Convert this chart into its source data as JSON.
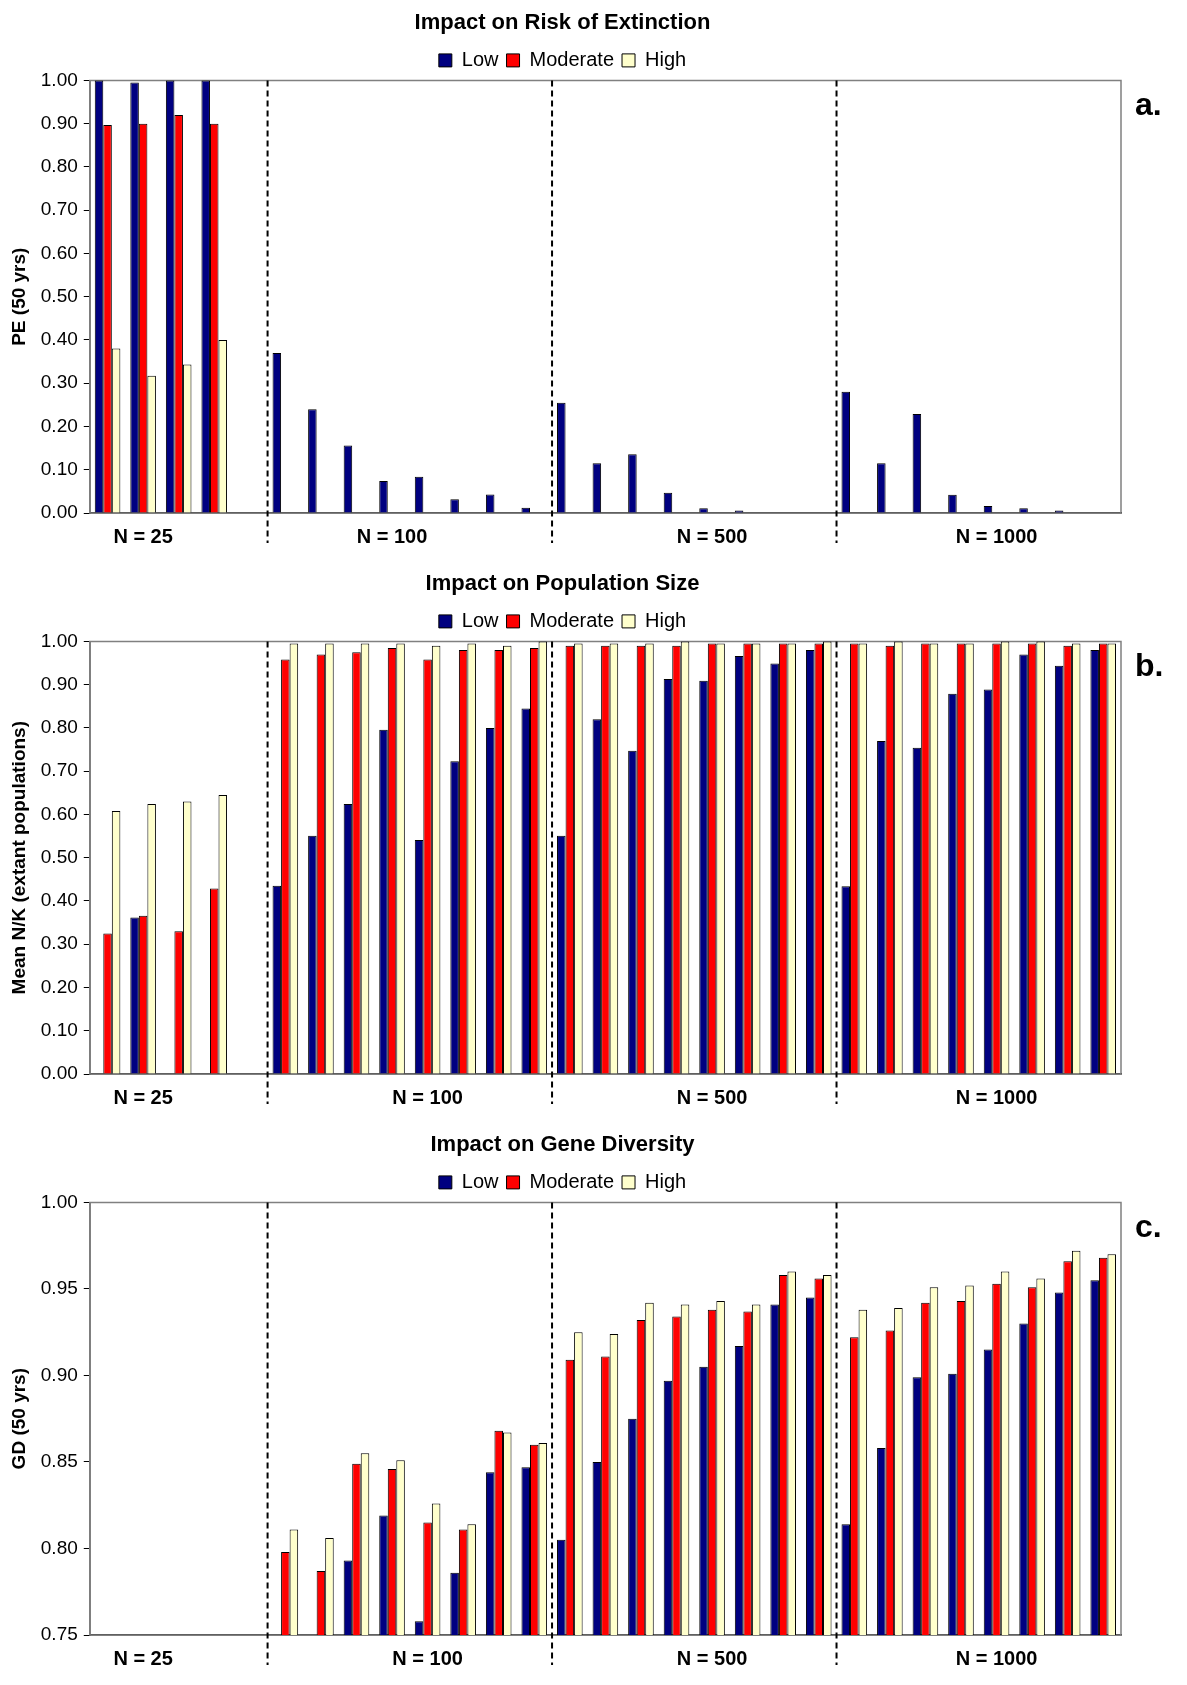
{
  "chart_data": [
    {
      "type": "bar",
      "title": "Impact on Risk of Extinction",
      "ylabel": "PE (50 yrs)",
      "legend": "top",
      "grid": false,
      "annotations": [
        "a."
      ],
      "categories": [
        null,
        "N = 25",
        null,
        null,
        null,
        null,
        null,
        null,
        "N = 100",
        null,
        null,
        null,
        null,
        null,
        null,
        null,
        null,
        "N = 500",
        null,
        null,
        null,
        null,
        null,
        null,
        null,
        "N = 1000",
        null,
        null,
        null
      ],
      "series": [
        {
          "name": "Low",
          "color": "#000080",
          "values": [
            1.0,
            0.995,
            1.0,
            1.0,
            null,
            0.37,
            0.24,
            0.156,
            0.074,
            0.084,
            0.032,
            0.043,
            0.012,
            0.255,
            0.115,
            0.136,
            0.047,
            0.011,
            0.006,
            0,
            0,
            0.28,
            0.115,
            0.229,
            0.042,
            0.016,
            0.011,
            0.006,
            0
          ]
        },
        {
          "name": "Moderate",
          "color": "#ff0000",
          "values": [
            0.897,
            0.9,
            0.92,
            0.9,
            null,
            0,
            0,
            0,
            0,
            0,
            0,
            0,
            0,
            0,
            0,
            0,
            0,
            0,
            0,
            0,
            0,
            0,
            0,
            0,
            0,
            0,
            0,
            0,
            0
          ]
        },
        {
          "name": "High",
          "color": "#ffffcc",
          "values": [
            0.38,
            0.317,
            0.343,
            0.4,
            null,
            0,
            0,
            0,
            0,
            0,
            0,
            0,
            0,
            0,
            0,
            0,
            0,
            0,
            0,
            0,
            0,
            0,
            0,
            0,
            0,
            0,
            0,
            0,
            0
          ]
        }
      ],
      "ylim": [
        0,
        1
      ],
      "yticks": [
        {
          "value": 0,
          "label": "0.00"
        },
        {
          "value": 0.1,
          "label": "0.10"
        },
        {
          "value": 0.2,
          "label": "0.20"
        },
        {
          "value": 0.3,
          "label": "0.30"
        },
        {
          "value": 0.4,
          "label": "0.40"
        },
        {
          "value": 0.5,
          "label": "0.50"
        },
        {
          "value": 0.6,
          "label": "0.60"
        },
        {
          "value": 0.7,
          "label": "0.70"
        },
        {
          "value": 0.8,
          "label": "0.80"
        },
        {
          "value": 0.9,
          "label": "0.90"
        },
        {
          "value": 1,
          "label": "1.00"
        }
      ]
    },
    {
      "type": "bar",
      "title": "Impact on Population Size",
      "ylabel": "Mean N/K (extant populations)",
      "legend": "top",
      "grid": false,
      "annotations": [
        "b."
      ],
      "categories": [
        null,
        "N = 25",
        null,
        null,
        null,
        null,
        null,
        null,
        null,
        "N = 100",
        null,
        null,
        null,
        null,
        null,
        null,
        null,
        "N = 500",
        null,
        null,
        null,
        null,
        null,
        null,
        null,
        "N = 1000",
        null,
        null,
        null
      ],
      "series": [
        {
          "name": "Low",
          "color": "#000080",
          "values": [
            null,
            0.362,
            null,
            null,
            null,
            0.435,
            0.551,
            0.624,
            0.796,
            0.541,
            0.723,
            0.8,
            0.845,
            0.551,
            0.82,
            0.747,
            0.913,
            0.909,
            0.966,
            0.949,
            0.98,
            0.434,
            0.77,
            0.754,
            0.879,
            0.889,
            0.97,
            0.944,
            0.98
          ]
        },
        {
          "name": "Moderate",
          "color": "#ff0000",
          "values": [
            0.325,
            0.366,
            0.33,
            0.429,
            null,
            0.958,
            0.97,
            0.975,
            0.985,
            0.958,
            0.98,
            0.98,
            0.985,
            0.99,
            0.99,
            0.99,
            0.99,
            0.995,
            0.995,
            0.995,
            0.995,
            0.995,
            0.99,
            0.995,
            0.995,
            0.995,
            0.995,
            0.99,
            0.995
          ]
        },
        {
          "name": "High",
          "color": "#ffffcc",
          "values": [
            0.608,
            0.624,
            0.63,
            0.645,
            null,
            0.995,
            0.995,
            0.995,
            0.995,
            0.99,
            0.995,
            0.99,
            1.0,
            0.995,
            0.995,
            0.995,
            1.0,
            0.995,
            0.995,
            0.995,
            1.0,
            0.995,
            1.0,
            0.995,
            0.995,
            1.0,
            1.0,
            0.995,
            0.995
          ]
        }
      ],
      "ylim": [
        0,
        1
      ],
      "yticks": [
        {
          "value": 0,
          "label": "0.00"
        },
        {
          "value": 0.1,
          "label": "0.10"
        },
        {
          "value": 0.2,
          "label": "0.20"
        },
        {
          "value": 0.3,
          "label": "0.30"
        },
        {
          "value": 0.4,
          "label": "0.40"
        },
        {
          "value": 0.5,
          "label": "0.50"
        },
        {
          "value": 0.6,
          "label": "0.60"
        },
        {
          "value": 0.7,
          "label": "0.70"
        },
        {
          "value": 0.8,
          "label": "0.80"
        },
        {
          "value": 0.9,
          "label": "0.90"
        },
        {
          "value": 1,
          "label": "1.00"
        }
      ]
    },
    {
      "type": "bar",
      "title": "Impact on Gene Diversity",
      "ylabel": "GD (50 yrs)",
      "legend": "top",
      "grid": false,
      "annotations": [
        "c."
      ],
      "categories": [
        null,
        "N = 25",
        null,
        null,
        null,
        null,
        null,
        null,
        null,
        "N = 100",
        null,
        null,
        null,
        null,
        null,
        null,
        null,
        "N = 500",
        null,
        null,
        null,
        null,
        null,
        null,
        null,
        "N = 1000",
        null,
        null,
        null
      ],
      "series": [
        {
          "name": "Low",
          "color": "#000080",
          "values": [
            null,
            null,
            null,
            null,
            null,
            null,
            null,
            0.793,
            0.819,
            0.758,
            0.786,
            0.844,
            0.847,
            0.805,
            0.85,
            0.875,
            0.897,
            0.905,
            0.917,
            0.941,
            0.945,
            0.814,
            0.858,
            0.899,
            0.901,
            0.915,
            0.93,
            0.948,
            0.955
          ]
        },
        {
          "name": "Moderate",
          "color": "#ff0000",
          "values": [
            null,
            null,
            null,
            null,
            null,
            0.798,
            0.787,
            0.849,
            0.846,
            0.815,
            0.811,
            0.868,
            0.86,
            0.909,
            0.911,
            0.932,
            0.934,
            0.938,
            0.937,
            0.958,
            0.956,
            0.922,
            0.926,
            0.942,
            0.943,
            0.953,
            0.951,
            0.966,
            0.968
          ]
        },
        {
          "name": "High",
          "color": "#ffffcc",
          "values": [
            null,
            null,
            null,
            null,
            null,
            0.811,
            0.806,
            0.855,
            0.851,
            0.826,
            0.814,
            0.867,
            0.861,
            0.925,
            0.924,
            0.942,
            0.941,
            0.943,
            0.941,
            0.96,
            0.958,
            0.938,
            0.939,
            0.951,
            0.952,
            0.96,
            0.956,
            0.972,
            0.97
          ]
        }
      ],
      "ylim": [
        0.75,
        1
      ],
      "yticks": [
        {
          "value": 0.75,
          "label": "0.75"
        },
        {
          "value": 0.8,
          "label": "0.80"
        },
        {
          "value": 0.85,
          "label": "0.85"
        },
        {
          "value": 0.9,
          "label": "0.90"
        },
        {
          "value": 0.95,
          "label": "0.95"
        },
        {
          "value": 1,
          "label": "1.00"
        }
      ]
    }
  ]
}
